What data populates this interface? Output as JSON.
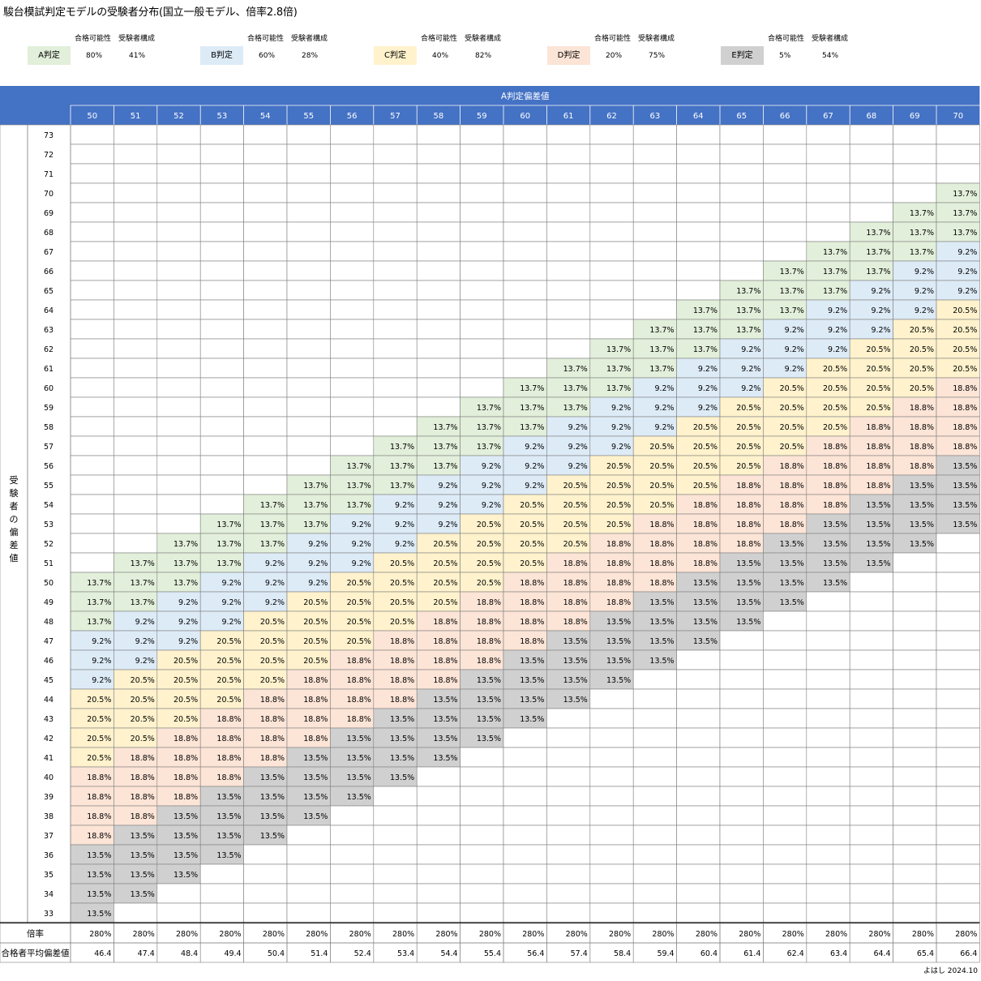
{
  "title": "駿台模試判定モデルの受験者分布(国立一般モデル、倍率2.8倍)",
  "legend": {
    "col_header_prob": "合格可能性",
    "col_header_comp": "受験者構成",
    "items": [
      {
        "label": "A判定",
        "prob": "80%",
        "comp": "41%",
        "color": "#e2efda"
      },
      {
        "label": "B判定",
        "prob": "60%",
        "comp": "28%",
        "color": "#ddebf7"
      },
      {
        "label": "C判定",
        "prob": "40%",
        "comp": "82%",
        "color": "#fff2cc"
      },
      {
        "label": "D判定",
        "prob": "20%",
        "comp": "75%",
        "color": "#fce4d6"
      },
      {
        "label": "E判定",
        "prob": "5%",
        "comp": "54%",
        "color": "#d0d0d0"
      }
    ]
  },
  "header_color": "#4472c4",
  "col_axis_label": "A判定偏差値",
  "row_axis_label": "受験者の偏差値",
  "footer_labels": {
    "ratio": "倍率",
    "avg": "合格者平均偏差値"
  },
  "credit": "よはし 2024.10",
  "chart_data": {
    "type": "table",
    "columns": [
      50,
      51,
      52,
      53,
      54,
      55,
      56,
      57,
      58,
      59,
      60,
      61,
      62,
      63,
      64,
      65,
      66,
      67,
      68,
      69,
      70
    ],
    "rows": [
      73,
      72,
      71,
      70,
      69,
      68,
      67,
      66,
      65,
      64,
      63,
      62,
      61,
      60,
      59,
      58,
      57,
      56,
      55,
      54,
      53,
      52,
      51,
      50,
      49,
      48,
      47,
      46,
      45,
      44,
      43,
      42,
      41,
      40,
      39,
      38,
      37,
      36,
      35,
      34,
      33
    ],
    "band_values": {
      "A": "13.7%",
      "B": "9.2%",
      "C": "20.5%",
      "D": "18.8%",
      "E": "13.5%"
    },
    "band_rule": "cell(row r, column c): d = c - r; A if 0<=d<=2, B if 3<=d<=5, C if 6<=d<=9, D if 10<=d<=13, E if 14<=d<=17, empty otherwise",
    "ratio": [
      "280%",
      "280%",
      "280%",
      "280%",
      "280%",
      "280%",
      "280%",
      "280%",
      "280%",
      "280%",
      "280%",
      "280%",
      "280%",
      "280%",
      "280%",
      "280%",
      "280%",
      "280%",
      "280%",
      "280%",
      "280%"
    ],
    "avg_deviation": [
      "46.4",
      "47.4",
      "48.4",
      "49.4",
      "50.4",
      "51.4",
      "52.4",
      "53.4",
      "54.4",
      "55.4",
      "56.4",
      "57.4",
      "58.4",
      "59.4",
      "60.4",
      "61.4",
      "62.4",
      "63.4",
      "64.4",
      "65.4",
      "66.4"
    ]
  }
}
